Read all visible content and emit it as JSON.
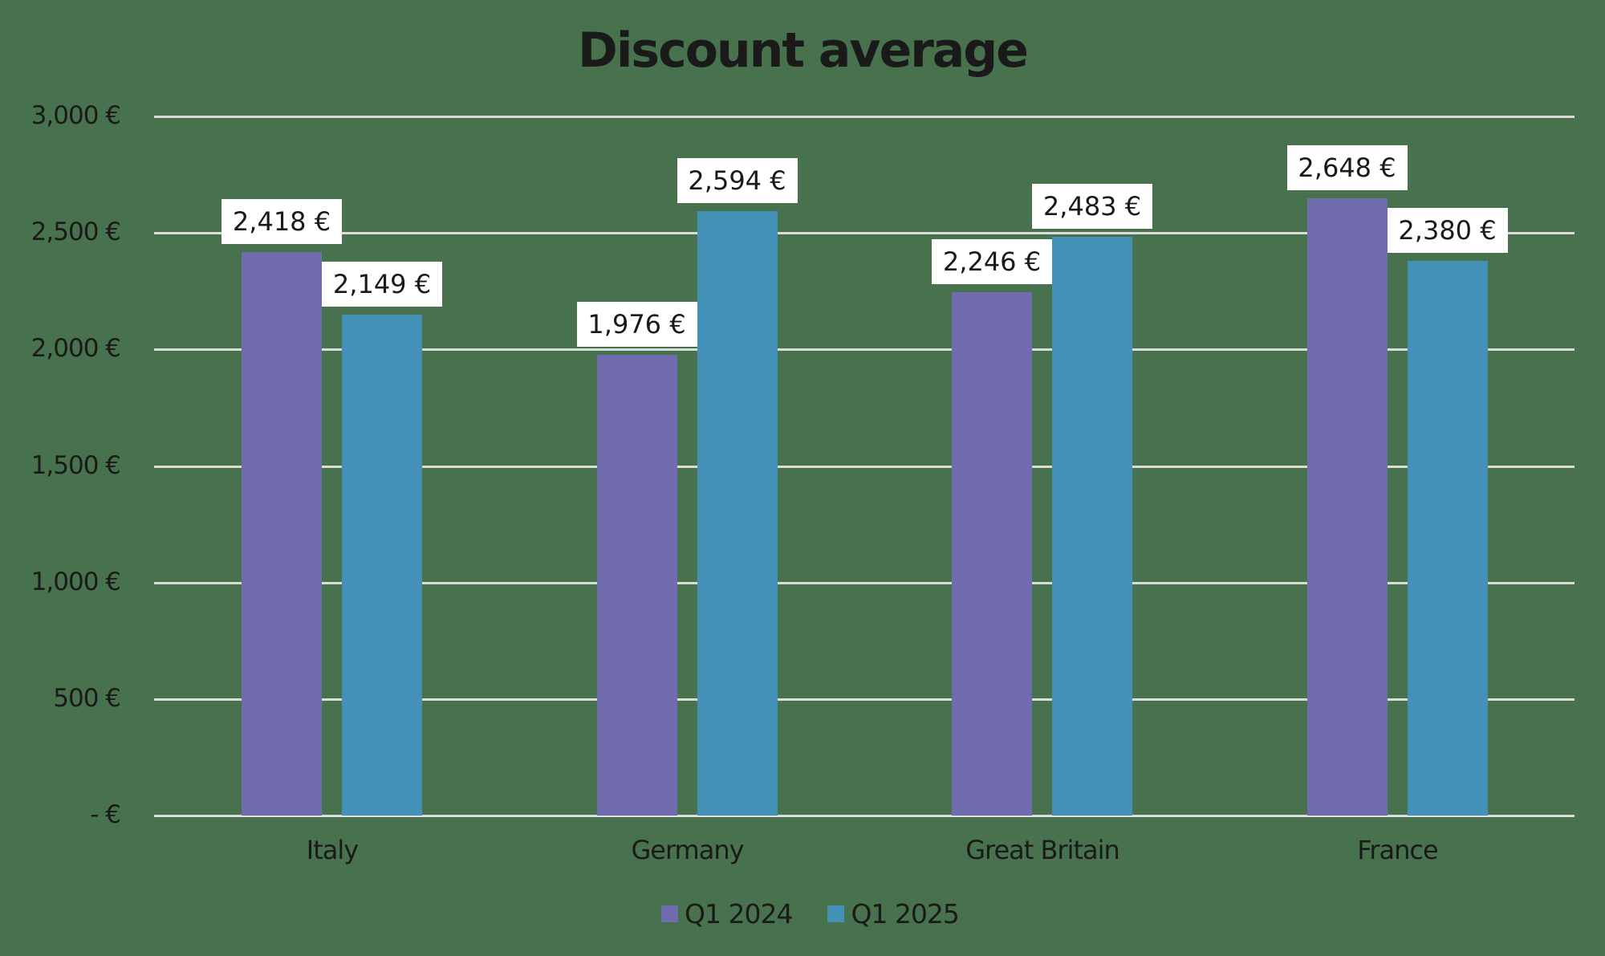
{
  "chart_data": {
    "type": "bar",
    "title": "Discount average",
    "xlabel": "",
    "ylabel": "",
    "categories": [
      "Italy",
      "Germany",
      "Great Britain",
      "France"
    ],
    "series": [
      {
        "name": "Q1 2024",
        "color": "#716cae",
        "values": [
          2418,
          1976,
          2246,
          2648
        ],
        "labels": [
          "2,418 €",
          "1,976 €",
          "2,246 €",
          "2,648 €"
        ]
      },
      {
        "name": "Q1 2025",
        "color": "#4391b6",
        "values": [
          2149,
          2594,
          2483,
          2380
        ],
        "labels": [
          "2,149 €",
          "2,594 €",
          "2,483 €",
          "2,380 €"
        ]
      }
    ],
    "ylim": [
      0,
      3000
    ],
    "yticks": [
      0,
      500,
      1000,
      1500,
      2000,
      2500,
      3000
    ],
    "ytick_labels": [
      "-   €",
      "500 €",
      "1,000 €",
      "1,500 €",
      "2,000 €",
      "2,500 €",
      "3,000 €"
    ],
    "grid": true,
    "legend_position": "bottom",
    "data_labels": true
  },
  "colors": {
    "background": "#48724d",
    "gridline": "#dcdcdc",
    "text": "#1a1a1a",
    "label_box": "#ffffff"
  }
}
